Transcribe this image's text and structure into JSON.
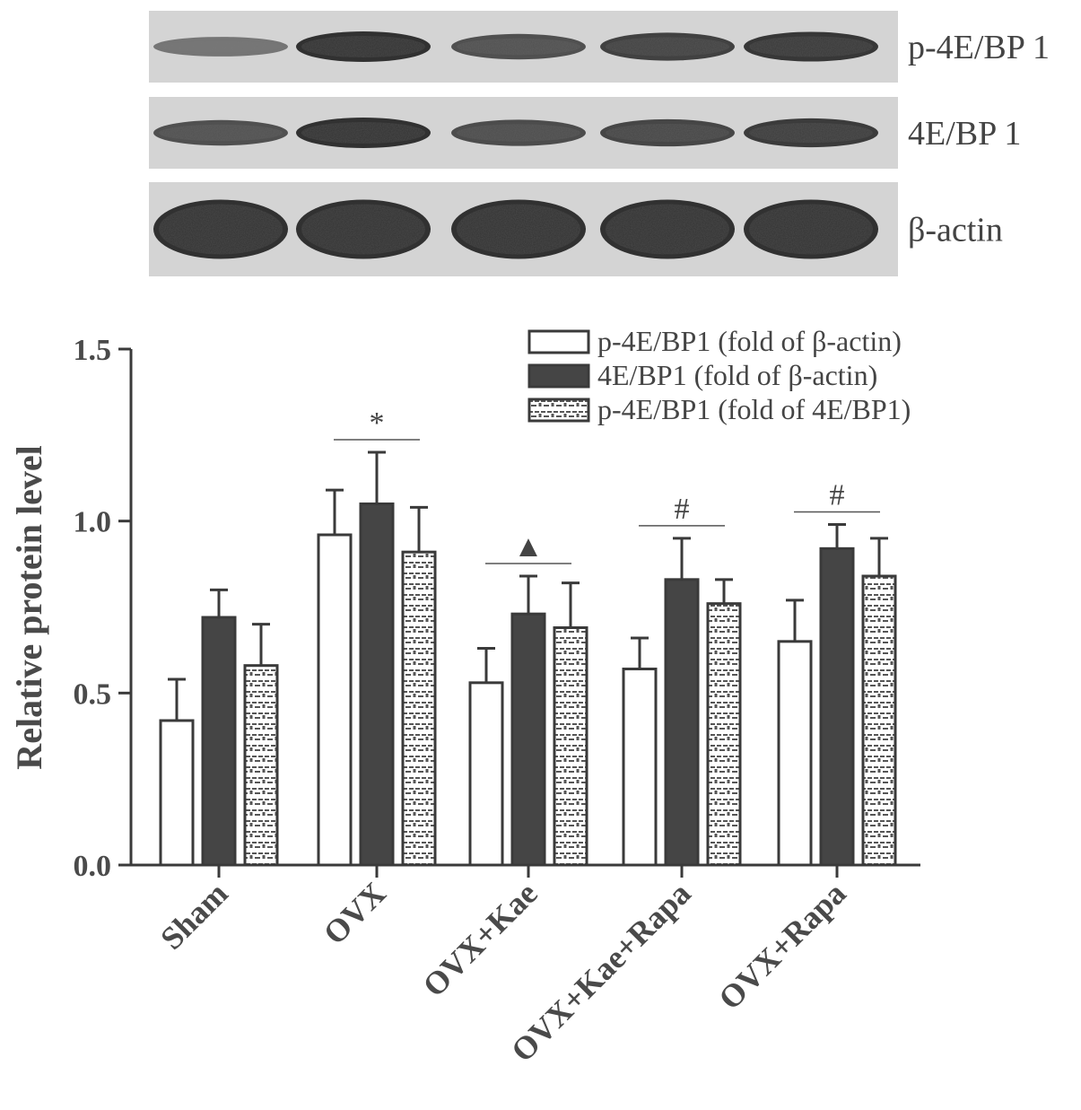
{
  "blot": {
    "rows": [
      {
        "label": "p-4E/BP 1",
        "bands": [
          0.35,
          1.0,
          0.7,
          0.85,
          0.95
        ]
      },
      {
        "label": "4E/BP 1",
        "bands": [
          0.7,
          1.0,
          0.75,
          0.8,
          0.9
        ]
      },
      {
        "label": "β-actin",
        "bands": [
          1.0,
          1.0,
          1.0,
          1.0,
          1.0
        ]
      }
    ]
  },
  "chart_data": {
    "type": "bar",
    "ylabel": "Relative protein level",
    "xlabel": "",
    "ylim": [
      0,
      1.5
    ],
    "yticks": [
      "0.0",
      "0.5",
      "1.0",
      "1.5"
    ],
    "ytick_values": [
      0,
      0.5,
      1.0,
      1.5
    ],
    "categories": [
      "Sham",
      "OVX",
      "OVX+Kae",
      "OVX+Kae+Rapa",
      "OVX+Rapa"
    ],
    "series": [
      {
        "name": "p-4E/BP1 (fold of  β-actin)",
        "style": "open",
        "values": [
          0.42,
          0.96,
          0.53,
          0.57,
          0.65
        ],
        "errors": [
          0.12,
          0.13,
          0.1,
          0.09,
          0.12
        ]
      },
      {
        "name": "4E/BP1  (fold of β-actin)",
        "style": "solid",
        "values": [
          0.72,
          1.05,
          0.73,
          0.83,
          0.92
        ],
        "errors": [
          0.08,
          0.15,
          0.11,
          0.12,
          0.07
        ]
      },
      {
        "name": "p-4E/BP1 (fold of 4E/BP1)",
        "style": "pattern",
        "values": [
          0.58,
          0.91,
          0.69,
          0.76,
          0.84
        ],
        "errors": [
          0.12,
          0.13,
          0.13,
          0.07,
          0.11
        ]
      }
    ],
    "annotations": [
      {
        "category": "OVX",
        "symbol": "*"
      },
      {
        "category": "OVX+Kae",
        "symbol": "▲"
      },
      {
        "category": "OVX+Kae+Rapa",
        "symbol": "#"
      },
      {
        "category": "OVX+Rapa",
        "symbol": "#"
      }
    ],
    "legend_position": "top-right",
    "colors": {
      "solid": "#454545",
      "open": "#ffffff",
      "outline": "#3a3a3a",
      "pattern": "#555555"
    }
  }
}
